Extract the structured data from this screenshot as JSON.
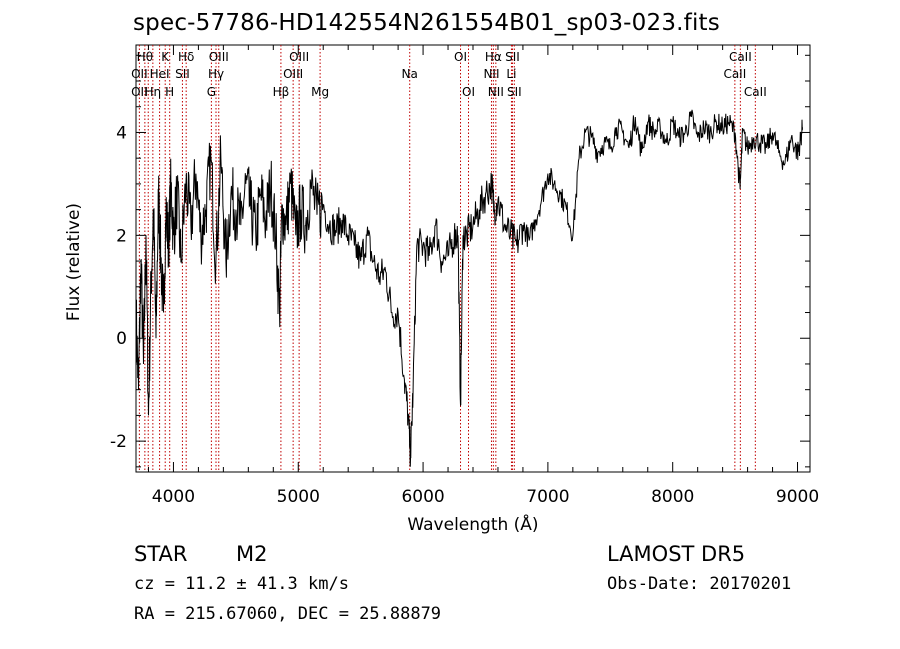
{
  "chart_data": {
    "type": "line",
    "title": "spec-57786-HD142554N261554B01_sp03-023.fits",
    "xlabel": "Wavelength (Å)",
    "ylabel": "Flux (relative)",
    "xlim": [
      3700,
      9100
    ],
    "ylim": [
      -2.6,
      5.7
    ],
    "xticks": [
      4000,
      5000,
      6000,
      7000,
      8000,
      9000
    ],
    "yticks": [
      -2,
      0,
      2,
      4
    ],
    "grid": false,
    "series": [
      {
        "color": "#000000",
        "x": [
          3700,
          3720,
          3740,
          3760,
          3780,
          3800,
          3820,
          3840,
          3860,
          3880,
          3900,
          3920,
          3940,
          3960,
          3980,
          4000,
          4030,
          4060,
          4100,
          4140,
          4180,
          4220,
          4260,
          4300,
          4340,
          4380,
          4420,
          4460,
          4500,
          4540,
          4580,
          4620,
          4660,
          4700,
          4740,
          4780,
          4820,
          4850,
          4870,
          4900,
          4940,
          4980,
          5020,
          5060,
          5100,
          5150,
          5200,
          5250,
          5300,
          5350,
          5400,
          5450,
          5500,
          5550,
          5600,
          5650,
          5700,
          5750,
          5800,
          5850,
          5880,
          5900,
          5920,
          5950,
          6000,
          6050,
          6100,
          6150,
          6200,
          6250,
          6280,
          6300,
          6320,
          6350,
          6400,
          6450,
          6500,
          6550,
          6570,
          6600,
          6650,
          6700,
          6750,
          6800,
          6850,
          6900,
          6950,
          7000,
          7050,
          7100,
          7150,
          7200,
          7250,
          7300,
          7350,
          7400,
          7450,
          7500,
          7550,
          7600,
          7650,
          7700,
          7750,
          7800,
          7850,
          7900,
          7950,
          8000,
          8050,
          8100,
          8150,
          8200,
          8250,
          8300,
          8350,
          8400,
          8450,
          8500,
          8540,
          8560,
          8600,
          8650,
          8700,
          8750,
          8800,
          8850,
          8900,
          8950,
          9000,
          9020,
          9040
        ],
        "y": [
          0.5,
          -1.0,
          1.5,
          -0.5,
          2.0,
          -1.5,
          1.0,
          2.5,
          0.0,
          2.8,
          1.5,
          0.5,
          2.5,
          1.8,
          3.0,
          2.0,
          2.8,
          1.5,
          3.0,
          2.2,
          3.2,
          2.0,
          2.5,
          3.5,
          1.5,
          3.5,
          1.5,
          2.8,
          2.5,
          2.2,
          3.0,
          2.5,
          2.0,
          2.8,
          2.3,
          3.0,
          2.0,
          0.5,
          2.5,
          2.2,
          3.0,
          2.0,
          2.5,
          2.2,
          3.0,
          2.4,
          2.6,
          2.2,
          2.1,
          2.3,
          2.0,
          1.8,
          1.5,
          2.0,
          1.5,
          1.2,
          1.3,
          0.5,
          0.5,
          -0.8,
          -1.5,
          -2.3,
          -1.0,
          1.8,
          1.8,
          1.6,
          2.2,
          1.5,
          1.6,
          2.0,
          2.0,
          -1.3,
          2.0,
          2.0,
          2.2,
          2.5,
          2.8,
          3.0,
          2.5,
          2.7,
          2.2,
          2.0,
          1.8,
          2.2,
          1.9,
          2.3,
          2.7,
          3.2,
          3.0,
          2.8,
          2.5,
          2.0,
          3.5,
          4.0,
          3.9,
          3.6,
          3.8,
          3.7,
          4.1,
          4.0,
          3.7,
          4.3,
          3.6,
          4.2,
          4.0,
          4.1,
          3.8,
          4.2,
          3.9,
          4.0,
          4.3,
          3.9,
          4.1,
          4.0,
          4.2,
          4.1,
          4.2,
          4.0,
          2.9,
          4.0,
          3.7,
          3.9,
          3.8,
          3.7,
          4.0,
          3.6,
          3.4,
          3.9,
          3.6,
          3.8,
          4.1
        ]
      }
    ],
    "lines": [
      {
        "x": 3727,
        "top": [
          "",
          "OII"
        ],
        "bottom": [
          "OII"
        ]
      },
      {
        "x": 3771,
        "top": [
          "Hθ"
        ],
        "bottom": []
      },
      {
        "x": 3798,
        "top": [],
        "bottom": []
      },
      {
        "x": 3835,
        "top": [],
        "bottom": [
          "Hη"
        ]
      },
      {
        "x": 3889,
        "top": [
          "",
          "HeI"
        ],
        "bottom": []
      },
      {
        "x": 3934,
        "top": [
          "K"
        ],
        "bottom": []
      },
      {
        "x": 3970,
        "top": [],
        "bottom": [
          "H"
        ]
      },
      {
        "x": 4072,
        "top": [
          "",
          "SII"
        ],
        "bottom": []
      },
      {
        "x": 4102,
        "top": [
          "Hδ"
        ],
        "bottom": []
      },
      {
        "x": 4304,
        "top": [],
        "bottom": [
          "G"
        ]
      },
      {
        "x": 4341,
        "top": [
          "",
          "Hγ"
        ],
        "bottom": []
      },
      {
        "x": 4363,
        "top": [
          "OIII"
        ],
        "bottom": []
      },
      {
        "x": 4861,
        "top": [],
        "bottom": [
          "Hβ"
        ]
      },
      {
        "x": 4959,
        "top": [
          "",
          "OIII"
        ],
        "bottom": []
      },
      {
        "x": 5007,
        "top": [
          "OIII"
        ],
        "bottom": []
      },
      {
        "x": 5175,
        "top": [],
        "bottom": [
          "Mg"
        ]
      },
      {
        "x": 5893,
        "top": [
          "",
          "Na"
        ],
        "bottom": []
      },
      {
        "x": 6300,
        "top": [
          "OI"
        ],
        "bottom": []
      },
      {
        "x": 6364,
        "top": [],
        "bottom": [
          "OI"
        ]
      },
      {
        "x": 6548,
        "top": [
          "",
          "NII"
        ],
        "bottom": []
      },
      {
        "x": 6563,
        "top": [
          "Hα"
        ],
        "bottom": []
      },
      {
        "x": 6583,
        "top": [],
        "bottom": [
          "NII"
        ]
      },
      {
        "x": 6708,
        "top": [
          "",
          "Li"
        ],
        "bottom": []
      },
      {
        "x": 6716,
        "top": [
          "SII"
        ],
        "bottom": []
      },
      {
        "x": 6731,
        "top": [],
        "bottom": [
          "SII"
        ]
      },
      {
        "x": 8498,
        "top": [
          "",
          "CaII"
        ],
        "bottom": []
      },
      {
        "x": 8542,
        "top": [
          "CaII"
        ],
        "bottom": []
      },
      {
        "x": 8662,
        "top": [],
        "bottom": [
          "CaII"
        ]
      }
    ]
  },
  "info": {
    "object_class": "STAR",
    "subclass": "M2",
    "survey": "LAMOST DR5",
    "redshift": "cz = 11.2 ± 41.3 km/s",
    "obs_date": "Obs-Date: 20170201",
    "coords": "RA = 215.67060, DEC =  25.88879"
  }
}
